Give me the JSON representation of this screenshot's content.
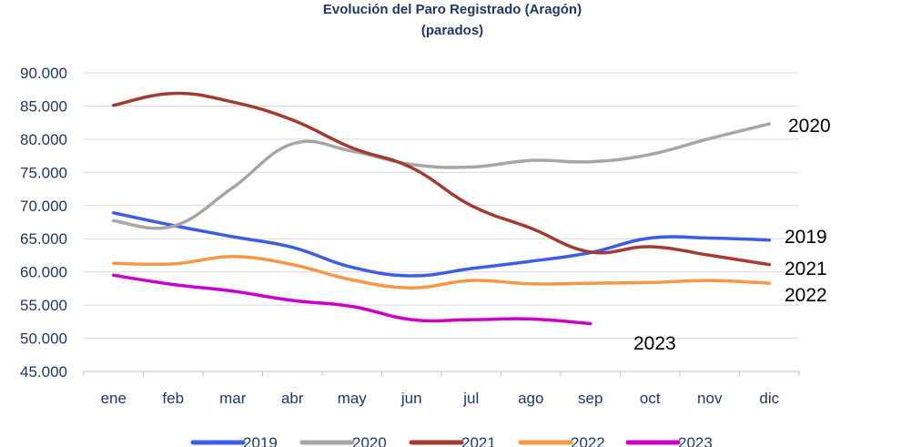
{
  "chart_data": {
    "type": "line",
    "title": "Evolución del Paro Registrado (Aragón)",
    "subtitle": "(parados)",
    "categories": [
      "ene",
      "feb",
      "mar",
      "abr",
      "may",
      "jun",
      "jul",
      "ago",
      "sep",
      "oct",
      "nov",
      "dic"
    ],
    "y_ticks": [
      "90.000",
      "85.000",
      "80.000",
      "75.000",
      "70.000",
      "65.000",
      "60.000",
      "55.000",
      "50.000",
      "45.000"
    ],
    "ylim": [
      45000,
      90000
    ],
    "grid": true,
    "legend_position": "bottom",
    "series": [
      {
        "name": "2019",
        "color": "#3a5ee8",
        "end_label": "2019",
        "values": [
          68900,
          67000,
          65300,
          63700,
          60700,
          59400,
          60500,
          61600,
          62900,
          65100,
          65100,
          64800
        ]
      },
      {
        "name": "2020",
        "color": "#a6a6a6",
        "end_label": "2020",
        "values": [
          67700,
          66900,
          72700,
          79300,
          78200,
          76200,
          75800,
          76800,
          76600,
          77700,
          80100,
          82300
        ]
      },
      {
        "name": "2021",
        "color": "#a33b32",
        "end_label": "2021",
        "values": [
          85100,
          86900,
          85600,
          82900,
          78700,
          75700,
          70000,
          66600,
          63000,
          63800,
          62500,
          61100
        ]
      },
      {
        "name": "2022",
        "color": "#f79646",
        "end_label": "2022",
        "values": [
          61300,
          61200,
          62300,
          61100,
          58800,
          57600,
          58700,
          58200,
          58300,
          58400,
          58700,
          58300
        ]
      },
      {
        "name": "2023",
        "color": "#cc00cc",
        "end_label": "2023",
        "values": [
          59500,
          58100,
          57100,
          55700,
          54800,
          52800,
          52800,
          52900,
          52200,
          null,
          null,
          null
        ]
      }
    ]
  }
}
